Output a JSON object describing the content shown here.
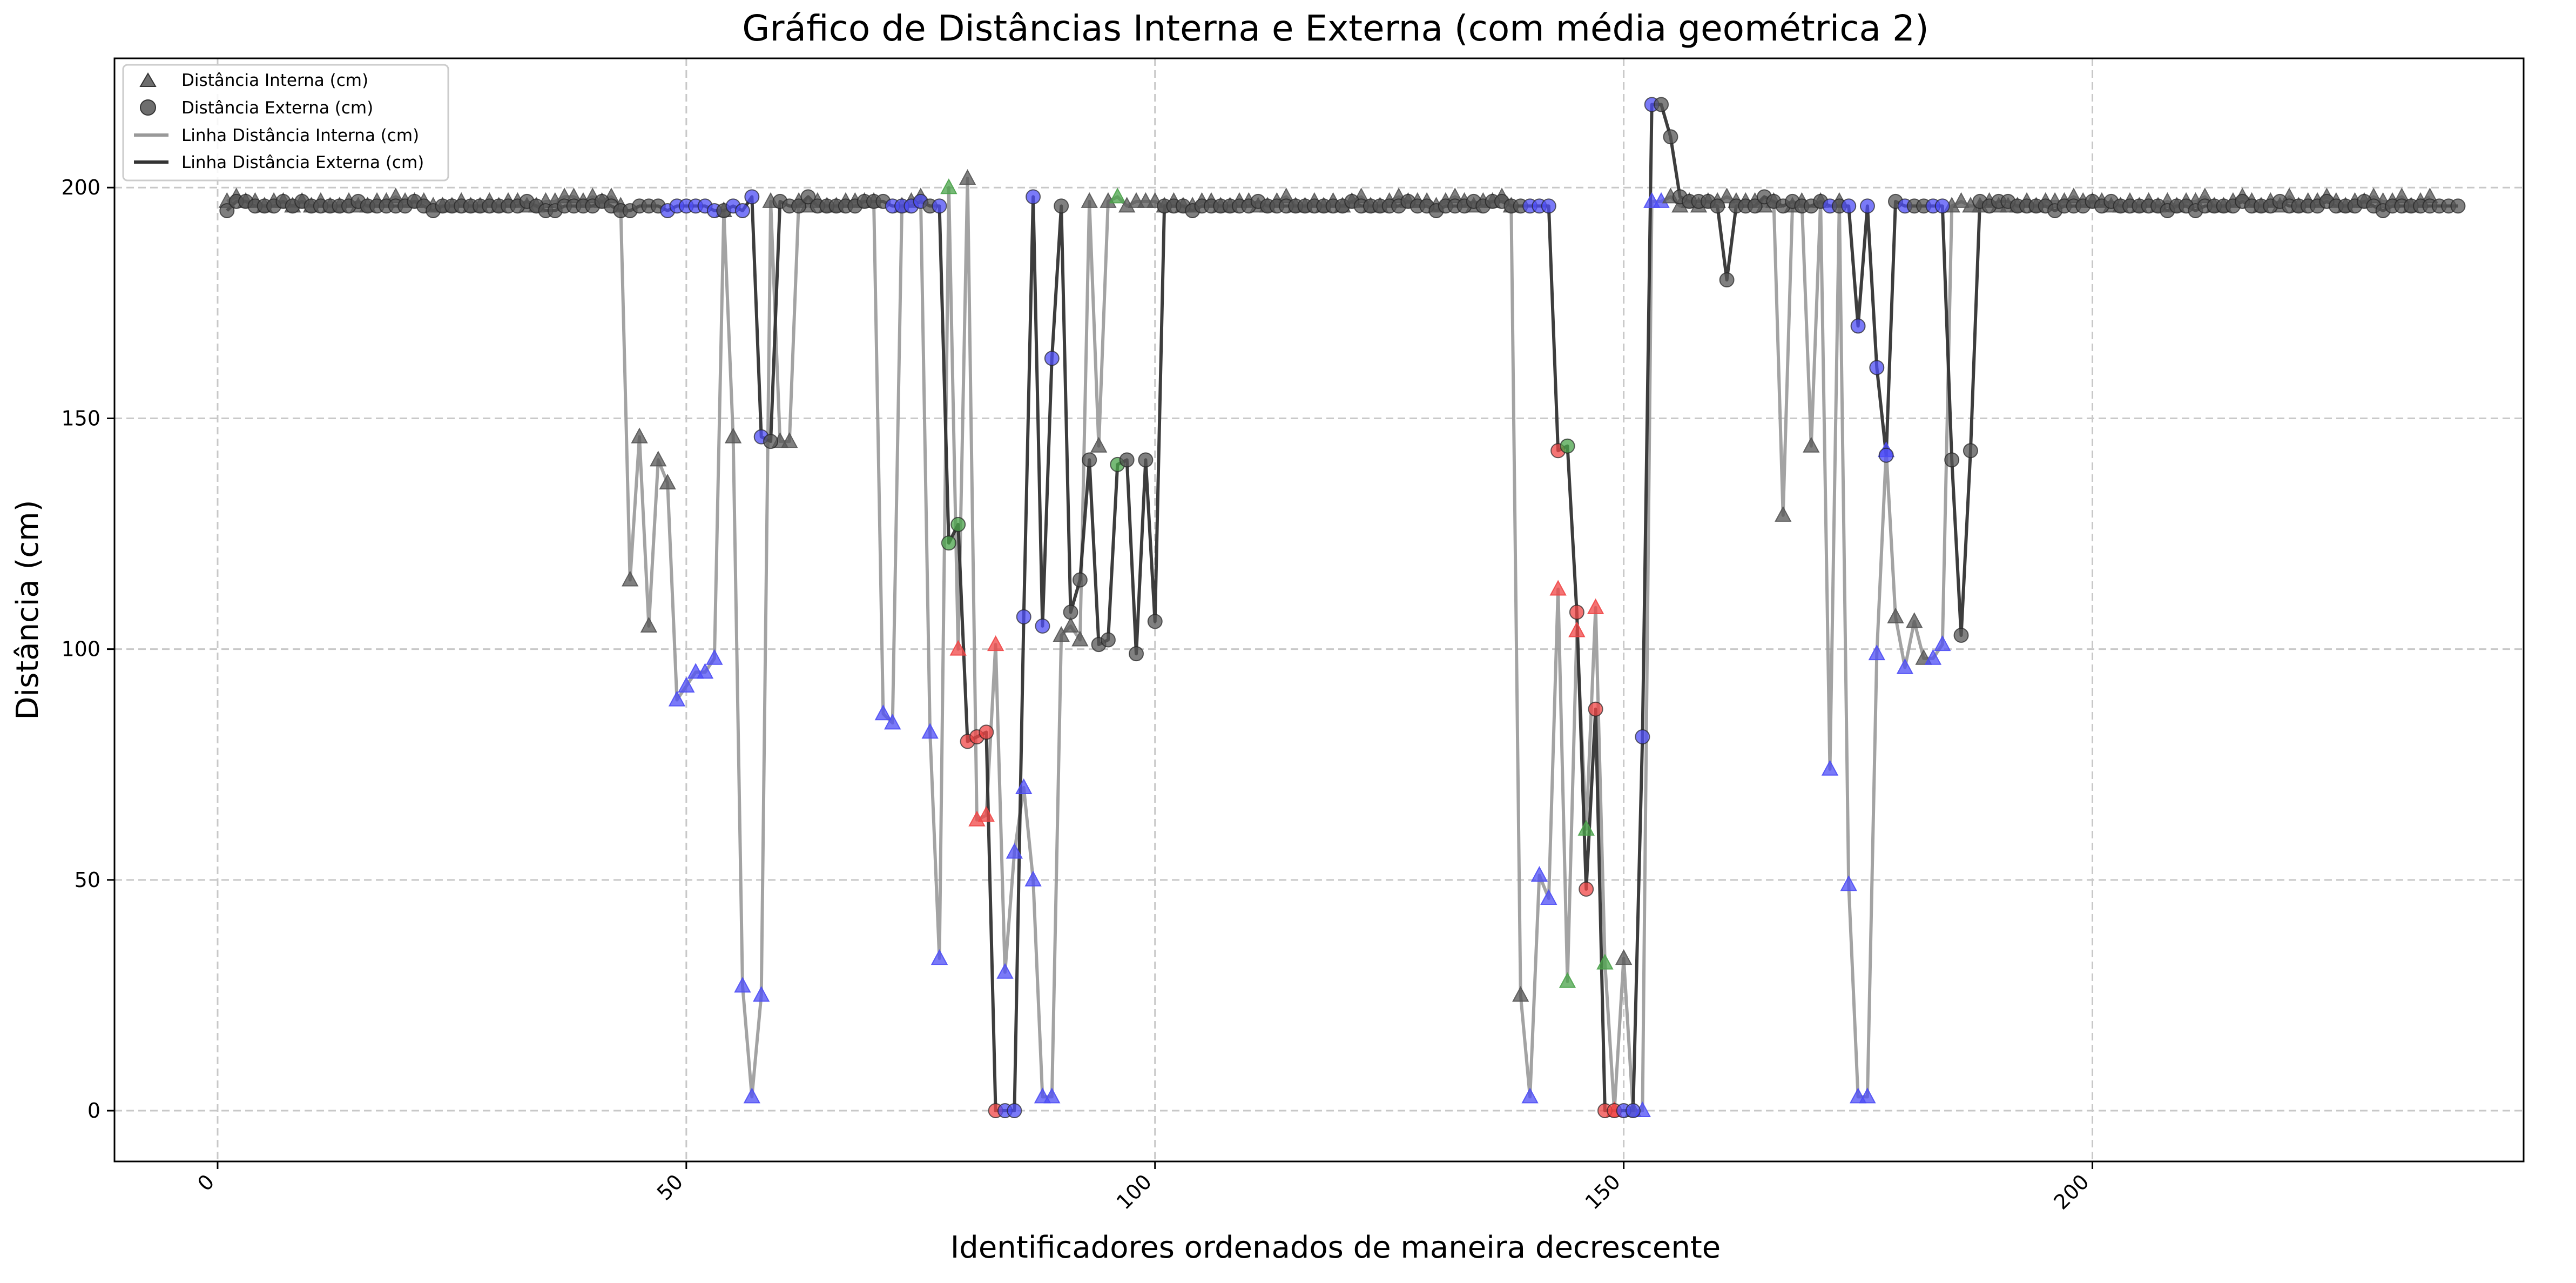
{
  "chart_data": {
    "type": "line",
    "title": "Gráfico de Distâncias Interna e Externa (com média geométrica 2)",
    "xlabel": "Identificadores ordenados de maneira decrescente",
    "ylabel": "Distância (cm)",
    "xlim": [
      -11,
      246
    ],
    "ylim": [
      -11,
      228
    ],
    "x_ticks": [
      0,
      50,
      100,
      150,
      200
    ],
    "y_ticks": [
      0,
      50,
      100,
      150,
      200
    ],
    "grid": true,
    "legend_position": "top-left",
    "legend": [
      "Distância Interna (cm)",
      "Distância Externa (cm)",
      "Linha Distância Interna (cm)",
      "Linha Distância Externa (cm)"
    ],
    "marker_colors": {
      "default": "#555555",
      "blue": "#4d4df5",
      "red": "#f04545",
      "green": "#4aa34a"
    },
    "line_colors": {
      "interna": "#999999",
      "externa": "#333333"
    },
    "x_start": 1,
    "series": [
      {
        "name": "Distância Interna (cm)",
        "marker": "triangle",
        "line_legend": "Linha Distância Interna (cm)",
        "values": [
          197,
          198,
          197,
          197,
          196,
          197,
          197,
          196,
          197,
          196,
          197,
          196,
          196,
          197,
          196,
          196,
          197,
          197,
          198,
          197,
          197,
          197,
          196,
          196,
          196,
          197,
          196,
          196,
          197,
          196,
          197,
          197,
          196,
          196,
          197,
          197,
          198,
          198,
          197,
          198,
          197,
          198,
          196,
          115,
          146,
          105,
          141,
          136,
          89,
          92,
          95,
          95,
          98,
          195,
          146,
          27,
          3,
          25,
          197,
          145,
          145,
          197,
          196,
          197,
          196,
          196,
          197,
          197,
          197,
          197,
          86,
          84,
          196,
          197,
          198,
          82,
          33,
          200,
          100,
          202,
          63,
          64,
          101,
          30,
          56,
          70,
          50,
          3,
          3,
          103,
          105,
          102,
          197,
          144,
          197,
          198,
          196,
          197,
          197,
          197,
          196,
          197,
          196,
          196,
          197,
          197,
          196,
          196,
          197,
          197,
          196,
          196,
          197,
          198,
          196,
          196,
          197,
          196,
          197,
          196,
          197,
          198,
          196,
          196,
          197,
          198,
          197,
          197,
          197,
          196,
          197,
          198,
          197,
          196,
          197,
          197,
          198,
          196,
          25,
          3,
          51,
          46,
          113,
          28,
          104,
          61,
          109,
          32,
          0,
          33,
          0,
          0,
          197,
          197,
          198,
          196,
          197,
          196,
          197,
          197,
          198,
          197,
          197,
          197,
          196,
          197,
          129,
          196,
          197,
          144,
          197,
          74,
          197,
          49,
          3,
          3,
          99,
          143,
          107,
          96,
          106,
          98,
          98,
          101,
          196,
          197,
          196,
          196,
          197,
          196,
          196,
          196,
          197,
          196,
          197,
          197,
          197,
          198,
          197,
          197,
          197,
          196,
          196,
          197,
          196,
          197,
          196,
          197,
          196,
          197,
          197,
          198,
          196,
          196,
          197,
          198,
          197,
          196,
          197,
          196,
          198,
          196,
          197,
          197,
          198,
          197,
          196,
          197,
          197,
          198,
          197,
          197,
          198,
          196,
          197,
          198
        ],
        "blue_idx": [
          49,
          50,
          51,
          52,
          53,
          56,
          57,
          58,
          71,
          72,
          76,
          77,
          84,
          85,
          86,
          87,
          88,
          89,
          140,
          141,
          142,
          152,
          153,
          154,
          172,
          174,
          175,
          176,
          177,
          178,
          180,
          183,
          184
        ],
        "red_idx": [
          79,
          81,
          82,
          83,
          143,
          145,
          147,
          149
        ],
        "green_idx": [
          78,
          96,
          144,
          146,
          148
        ]
      },
      {
        "name": "Distância Externa (cm)",
        "marker": "circle",
        "line_legend": "Linha Distância Externa (cm)",
        "values": [
          195,
          197,
          197,
          196,
          196,
          196,
          197,
          196,
          197,
          196,
          196,
          196,
          196,
          196,
          197,
          196,
          196,
          196,
          196,
          196,
          197,
          196,
          195,
          196,
          196,
          196,
          196,
          196,
          196,
          196,
          196,
          196,
          197,
          196,
          195,
          195,
          196,
          196,
          196,
          196,
          197,
          196,
          195,
          195,
          196,
          196,
          196,
          195,
          196,
          196,
          196,
          196,
          195,
          195,
          196,
          195,
          198,
          146,
          145,
          197,
          196,
          196,
          198,
          196,
          196,
          196,
          196,
          196,
          197,
          197,
          197,
          196,
          196,
          196,
          197,
          196,
          196,
          123,
          127,
          80,
          81,
          82,
          0,
          0,
          0,
          107,
          198,
          105,
          163,
          196,
          108,
          115,
          141,
          101,
          102,
          140,
          141,
          99,
          141,
          106,
          196,
          196,
          196,
          195,
          196,
          196,
          196,
          196,
          196,
          196,
          197,
          196,
          196,
          196,
          196,
          196,
          196,
          196,
          196,
          196,
          197,
          196,
          196,
          196,
          196,
          196,
          197,
          196,
          196,
          195,
          196,
          196,
          196,
          197,
          196,
          197,
          197,
          196,
          196,
          196,
          196,
          196,
          143,
          144,
          108,
          48,
          87,
          0,
          0,
          0,
          0,
          81,
          218,
          218,
          211,
          198,
          197,
          197,
          197,
          196,
          180,
          196,
          196,
          196,
          198,
          197,
          196,
          197,
          196,
          196,
          197,
          196,
          196,
          196,
          170,
          196,
          161,
          142,
          197,
          196,
          196,
          196,
          196,
          196,
          141,
          103,
          143,
          197,
          196,
          197,
          197,
          196,
          196,
          196,
          196,
          195,
          196,
          196,
          196,
          197,
          196,
          197,
          196,
          196,
          196,
          196,
          196,
          195,
          196,
          196,
          195,
          196,
          196,
          196,
          196,
          197,
          196,
          196,
          196,
          197,
          196,
          196,
          196,
          196,
          197,
          196,
          196,
          196,
          197,
          196,
          195,
          196,
          196,
          196,
          196,
          196,
          196,
          196,
          196
        ],
        "blue_idx": [
          48,
          49,
          50,
          51,
          52,
          53,
          55,
          56,
          57,
          58,
          72,
          73,
          74,
          75,
          77,
          78,
          83,
          84,
          85,
          86,
          87,
          88,
          89,
          140,
          141,
          142,
          150,
          151,
          152,
          153,
          172,
          174,
          175,
          176,
          177,
          178,
          180,
          183,
          184
        ],
        "red_idx": [
          80,
          81,
          82,
          83,
          143,
          145,
          146,
          147,
          148,
          149
        ],
        "green_idx": [
          78,
          79,
          80,
          144,
          148,
          96
        ]
      }
    ]
  }
}
